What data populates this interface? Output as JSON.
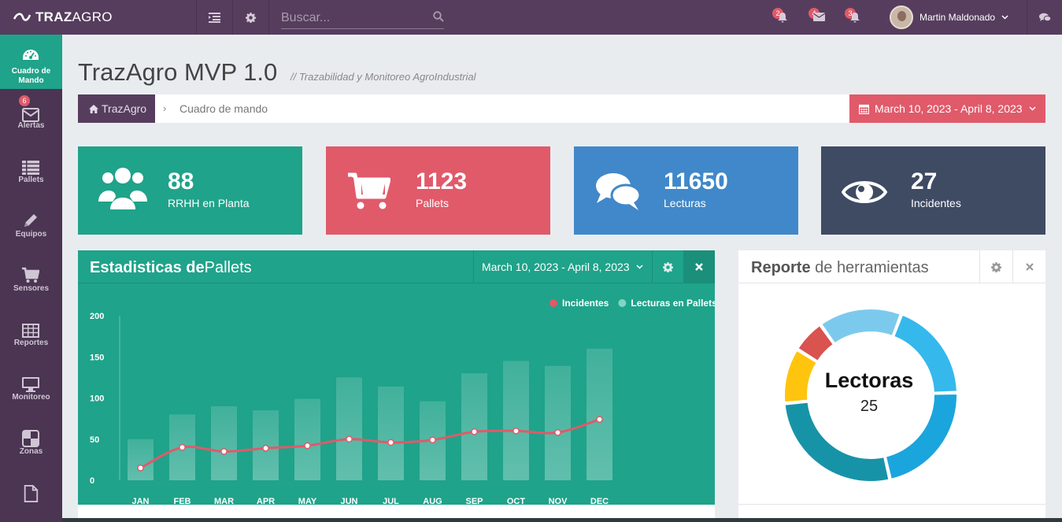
{
  "brand": {
    "part1": "TRAZ",
    "part2": "AGRO"
  },
  "topbar": {
    "search_placeholder": "Buscar...",
    "notifications": [
      {
        "icon": "bell-alert-icon",
        "count": "2"
      },
      {
        "icon": "envelope-icon",
        "count": "4"
      },
      {
        "icon": "bell-icon",
        "count": "3"
      }
    ],
    "user_name": "Martin Maldonado"
  },
  "sidebar": {
    "items": [
      {
        "label1": "Cuadro de",
        "label2": "Mando",
        "icon": "dashboard-icon",
        "active": true
      },
      {
        "label1": "Alertas",
        "label2": "",
        "icon": "envelope-icon",
        "badge": "6"
      },
      {
        "label1": "Pallets",
        "label2": "",
        "icon": "list-icon"
      },
      {
        "label1": "Equipos",
        "label2": "",
        "icon": "pencil-icon"
      },
      {
        "label1": "Sensores",
        "label2": "",
        "icon": "cart-icon"
      },
      {
        "label1": "Reportes",
        "label2": "",
        "icon": "table-icon"
      },
      {
        "label1": "Monitoreo",
        "label2": "",
        "icon": "monitor-icon"
      },
      {
        "label1": "Zonas",
        "label2": "",
        "icon": "zones-icon"
      },
      {
        "label1": "",
        "label2": "",
        "icon": "file-icon"
      }
    ]
  },
  "header": {
    "title": "TrazAgro MVP 1.0",
    "subtitle": "// Trazabilidad y Monitoreo AgroIndustrial",
    "breadcrumb_home": "TrazAgro",
    "breadcrumb_sep": "›",
    "breadcrumb_current": "Cuadro de mando",
    "date_range": "March 10, 2023 - April 8, 2023"
  },
  "tiles": [
    {
      "value": "88",
      "label": "RRHH en Planta",
      "color": "#1fa38a",
      "icon": "users-icon"
    },
    {
      "value": "1123",
      "label": "Pallets",
      "color": "#e05a6a",
      "icon": "cart-icon"
    },
    {
      "value": "11650",
      "label": "Lecturas",
      "color": "#4088c9",
      "icon": "comments-icon"
    },
    {
      "value": "27",
      "label": "Incidentes",
      "color": "#3e4b63",
      "icon": "eye-icon"
    }
  ],
  "stats_panel": {
    "title_bold": "Estadisticas de",
    "title_rest": "Pallets",
    "date_range": "March 10, 2023 - April 8, 2023"
  },
  "chart_data": {
    "type": "bar",
    "categories": [
      "JAN",
      "FEB",
      "MAR",
      "APR",
      "MAY",
      "JUN",
      "JUL",
      "AUG",
      "SEP",
      "OCT",
      "NOV",
      "DEC"
    ],
    "ylim": [
      0,
      200
    ],
    "yticks": [
      0,
      50,
      100,
      150,
      200
    ],
    "series": [
      {
        "name": "Incidentes",
        "kind": "line",
        "color": "#e05a6a",
        "values": [
          15,
          40,
          35,
          39,
          42,
          50,
          46,
          49,
          59,
          60,
          58,
          74
        ]
      },
      {
        "name": "Lecturas en Pallets",
        "kind": "bar",
        "color": "#5bc8b0",
        "values": [
          50,
          80,
          90,
          85,
          99,
          125,
          114,
          96,
          130,
          145,
          139,
          160
        ]
      }
    ],
    "legend": "top-right",
    "grid": false
  },
  "report_panel": {
    "title_bold": "Reporte",
    "title_rest": " de herramientas",
    "center_label": "Lectoras",
    "center_value": "25",
    "donut": [
      {
        "value": 21,
        "color": "#1ba5dd",
        "shade": "#1699cf"
      },
      {
        "value": 26,
        "color": "#1793a8",
        "shade": "#138393"
      },
      {
        "value": 10,
        "color": "#ffc40d",
        "shade": "#eab000"
      },
      {
        "value": 6,
        "color": "#d9534f",
        "shade": "#c8453f"
      },
      {
        "value": 15,
        "color": "#7bcaed",
        "shade": "#66bfe6"
      },
      {
        "value": 18,
        "color": "#35b8ec",
        "shade": "#26aee6"
      }
    ]
  }
}
